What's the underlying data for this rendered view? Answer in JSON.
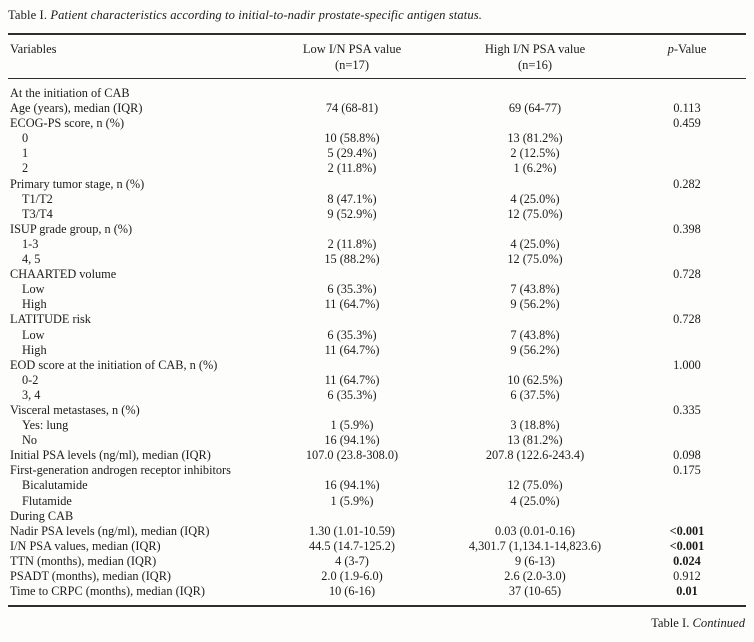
{
  "caption": {
    "prefix": "Table I. ",
    "text": "Patient characteristics according to initial-to-nadir prostate-specific antigen status."
  },
  "footer": {
    "prefix": "Table I. ",
    "text": "Continued"
  },
  "table": {
    "header": {
      "variables": "Variables",
      "low_line1": "Low I/N PSA value",
      "low_line2": "(n=17)",
      "high_line1": "High I/N PSA value",
      "high_line2": "(n=16)",
      "p_italic": "p",
      "p_suffix": "-Value"
    },
    "rows": [
      {
        "label": "At the initiation of CAB",
        "indent": 0,
        "low": "",
        "high": "",
        "p": "",
        "p_bold": false
      },
      {
        "label": "Age (years), median (IQR)",
        "indent": 0,
        "low": "74 (68-81)",
        "high": "69 (64-77)",
        "p": "0.113",
        "p_bold": false
      },
      {
        "label": "ECOG-PS score, n (%)",
        "indent": 0,
        "low": "",
        "high": "",
        "p": "0.459",
        "p_bold": false
      },
      {
        "label": "0",
        "indent": 1,
        "low": "10 (58.8%)",
        "high": "13 (81.2%)",
        "p": "",
        "p_bold": false
      },
      {
        "label": "1",
        "indent": 1,
        "low": "5 (29.4%)",
        "high": "2 (12.5%)",
        "p": "",
        "p_bold": false
      },
      {
        "label": "2",
        "indent": 1,
        "low": "2 (11.8%)",
        "high": "1 (6.2%)",
        "p": "",
        "p_bold": false
      },
      {
        "label": "Primary tumor stage, n (%)",
        "indent": 0,
        "low": "",
        "high": "",
        "p": "0.282",
        "p_bold": false
      },
      {
        "label": "T1/T2",
        "indent": 1,
        "low": "8 (47.1%)",
        "high": "4 (25.0%)",
        "p": "",
        "p_bold": false
      },
      {
        "label": "T3/T4",
        "indent": 1,
        "low": "9 (52.9%)",
        "high": "12 (75.0%)",
        "p": "",
        "p_bold": false
      },
      {
        "label": "ISUP grade group, n (%)",
        "indent": 0,
        "low": "",
        "high": "",
        "p": "0.398",
        "p_bold": false
      },
      {
        "label": "1-3",
        "indent": 1,
        "low": "2 (11.8%)",
        "high": "4 (25.0%)",
        "p": "",
        "p_bold": false
      },
      {
        "label": "4, 5",
        "indent": 1,
        "low": "15 (88.2%)",
        "high": "12 (75.0%)",
        "p": "",
        "p_bold": false
      },
      {
        "label": "CHAARTED volume",
        "indent": 0,
        "low": "",
        "high": "",
        "p": "0.728",
        "p_bold": false
      },
      {
        "label": "Low",
        "indent": 1,
        "low": "6 (35.3%)",
        "high": "7 (43.8%)",
        "p": "",
        "p_bold": false
      },
      {
        "label": "High",
        "indent": 1,
        "low": "11 (64.7%)",
        "high": "9 (56.2%)",
        "p": "",
        "p_bold": false
      },
      {
        "label": "LATITUDE risk",
        "indent": 0,
        "low": "",
        "high": "",
        "p": "0.728",
        "p_bold": false
      },
      {
        "label": "Low",
        "indent": 1,
        "low": "6 (35.3%)",
        "high": "7 (43.8%)",
        "p": "",
        "p_bold": false
      },
      {
        "label": "High",
        "indent": 1,
        "low": "11 (64.7%)",
        "high": "9 (56.2%)",
        "p": "",
        "p_bold": false
      },
      {
        "label": "EOD score at the initiation of CAB, n (%)",
        "indent": 0,
        "low": "",
        "high": "",
        "p": "1.000",
        "p_bold": false
      },
      {
        "label": "0-2",
        "indent": 1,
        "low": "11 (64.7%)",
        "high": "10 (62.5%)",
        "p": "",
        "p_bold": false
      },
      {
        "label": "3, 4",
        "indent": 1,
        "low": "6 (35.3%)",
        "high": "6 (37.5%)",
        "p": "",
        "p_bold": false
      },
      {
        "label": "Visceral metastases, n (%)",
        "indent": 0,
        "low": "",
        "high": "",
        "p": "0.335",
        "p_bold": false
      },
      {
        "label": "Yes: lung",
        "indent": 1,
        "low": "1 (5.9%)",
        "high": "3 (18.8%)",
        "p": "",
        "p_bold": false
      },
      {
        "label": "No",
        "indent": 1,
        "low": "16 (94.1%)",
        "high": "13 (81.2%)",
        "p": "",
        "p_bold": false
      },
      {
        "label": "Initial PSA levels (ng/ml), median (IQR)",
        "indent": 0,
        "low": "107.0 (23.8-308.0)",
        "high": "207.8 (122.6-243.4)",
        "p": "0.098",
        "p_bold": false
      },
      {
        "label": "First-generation androgen receptor inhibitors",
        "indent": 0,
        "low": "",
        "high": "",
        "p": "0.175",
        "p_bold": false
      },
      {
        "label": "Bicalutamide",
        "indent": 1,
        "low": "16 (94.1%)",
        "high": "12 (75.0%)",
        "p": "",
        "p_bold": false
      },
      {
        "label": "Flutamide",
        "indent": 1,
        "low": "1 (5.9%)",
        "high": "4 (25.0%)",
        "p": "",
        "p_bold": false
      },
      {
        "label": "During CAB",
        "indent": 0,
        "low": "",
        "high": "",
        "p": "",
        "p_bold": false
      },
      {
        "label": "Nadir PSA levels (ng/ml), median (IQR)",
        "indent": 0,
        "low": "1.30 (1.01-10.59)",
        "high": "0.03 (0.01-0.16)",
        "p": "<0.001",
        "p_bold": true
      },
      {
        "label": "I/N PSA values, median (IQR)",
        "indent": 0,
        "low": "44.5 (14.7-125.2)",
        "high": "4,301.7 (1,134.1-14,823.6)",
        "p": "<0.001",
        "p_bold": true
      },
      {
        "label": "TTN (months), median (IQR)",
        "indent": 0,
        "low": "4 (3-7)",
        "high": "9 (6-13)",
        "p": "0.024",
        "p_bold": true
      },
      {
        "label": "PSADT (months), median (IQR)",
        "indent": 0,
        "low": "2.0 (1.9-6.0)",
        "high": "2.6 (2.0-3.0)",
        "p": "0.912",
        "p_bold": false
      },
      {
        "label": "Time to CRPC (months), median (IQR)",
        "indent": 0,
        "low": "10 (6-16)",
        "high": "37 (10-65)",
        "p": "0.01",
        "p_bold": true
      }
    ]
  }
}
